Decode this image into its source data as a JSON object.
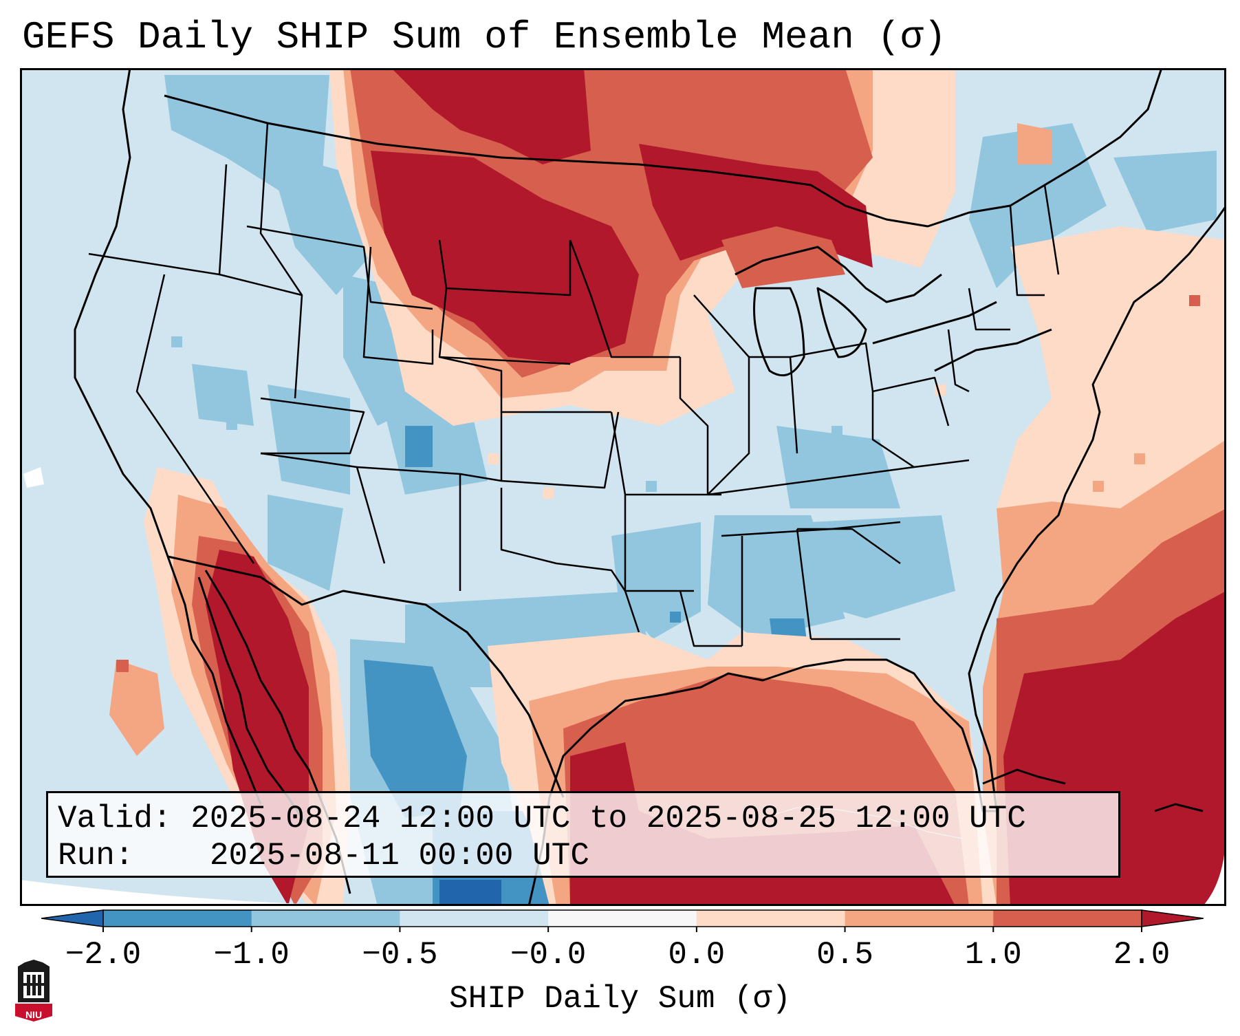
{
  "title": "GEFS Daily SHIP Sum of Ensemble Mean (σ)",
  "info": {
    "valid_label": "Valid:",
    "valid_value": "2025-08-24 12:00 UTC to 2025-08-25 12:00 UTC",
    "run_label": "Run:",
    "run_value": "2025-08-11 00:00 UTC"
  },
  "colorbar": {
    "label": "SHIP Daily Sum (σ)",
    "ticks": [
      "−2.0",
      "−1.0",
      "−0.5",
      "−0.0",
      "0.0",
      "0.5",
      "1.0",
      "2.0"
    ],
    "colors": {
      "under": "#2166ac",
      "bins": [
        "#4393c3",
        "#92c5de",
        "#d1e5f0",
        "#f7f7f7",
        "#fddbc7",
        "#f4a582",
        "#d6604d"
      ],
      "over": "#b2182b"
    }
  },
  "logo": {
    "text": "NIU",
    "color": "#c8102e"
  },
  "map": {
    "background_color": "#d1e5f0",
    "region": "Contiguous United States, northern Mexico, Gulf of Mexico, western Atlantic"
  }
}
